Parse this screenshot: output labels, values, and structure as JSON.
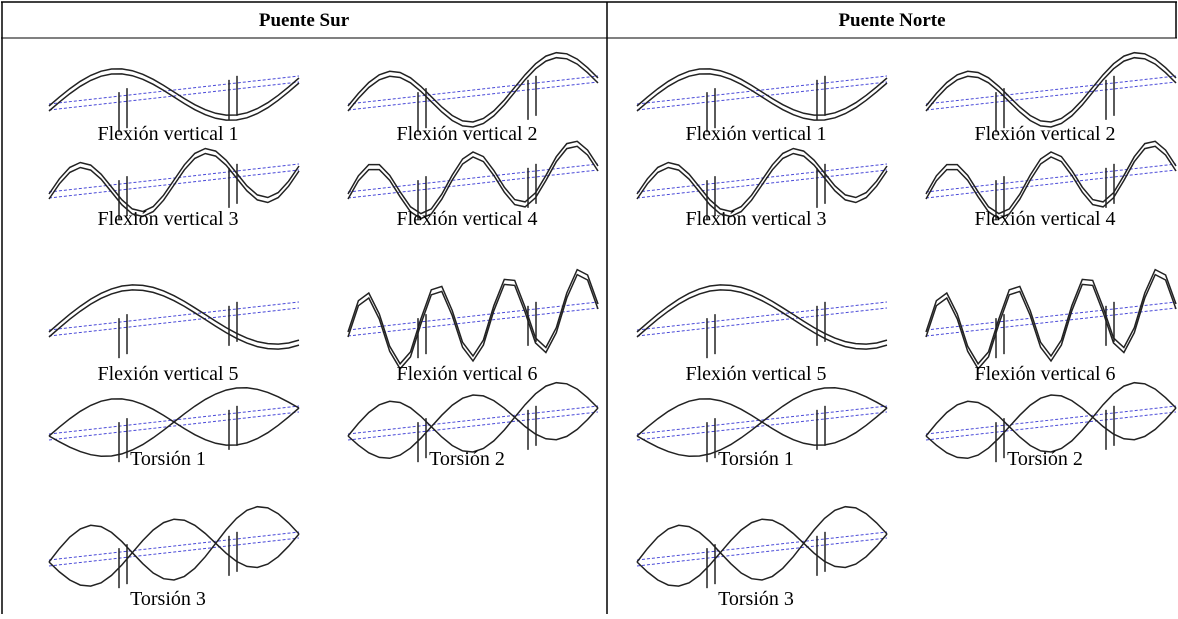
{
  "table": {
    "panels": [
      {
        "title": "Puente Sur",
        "modes": [
          "Flexión vertical 1",
          "Flexión vertical 2",
          "Flexión vertical 3",
          "Flexión vertical 4",
          "Flexión vertical 5",
          "Flexión vertical 6",
          "Torsión 1",
          "Torsión 2",
          "Torsión 3"
        ]
      },
      {
        "title": "Puente Norte",
        "modes": [
          "Flexión vertical 1",
          "Flexión vertical 2",
          "Flexión vertical 3",
          "Flexión vertical 4",
          "Flexión vertical 5",
          "Flexión vertical 6",
          "Torsión 1",
          "Torsión 2",
          "Torsión 3"
        ]
      }
    ]
  }
}
